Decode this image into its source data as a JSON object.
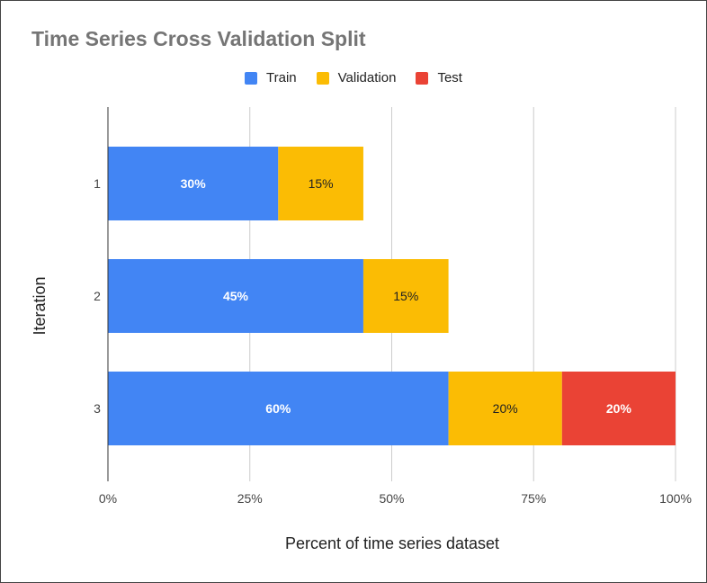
{
  "chart_data": {
    "type": "bar",
    "orientation": "horizontal",
    "stacked": true,
    "title": "Time Series Cross Validation Split",
    "xlabel": "Percent of time series dataset",
    "ylabel": "Iteration",
    "categories": [
      "1",
      "2",
      "3"
    ],
    "xlim": [
      0,
      100
    ],
    "xticks": [
      "0%",
      "25%",
      "50%",
      "75%",
      "100%"
    ],
    "grid": true,
    "legend_position": "top",
    "series": [
      {
        "name": "Train",
        "color": "#4285F4",
        "values": [
          30,
          45,
          60
        ],
        "labels": [
          "30%",
          "45%",
          "60%"
        ],
        "label_color": "#ffffff"
      },
      {
        "name": "Validation",
        "color": "#FBBC04",
        "values": [
          15,
          15,
          20
        ],
        "labels": [
          "15%",
          "15%",
          "20%"
        ],
        "label_color": "#222222"
      },
      {
        "name": "Test",
        "color": "#EA4335",
        "values": [
          0,
          0,
          20
        ],
        "labels": [
          "",
          "",
          "20%"
        ],
        "label_color": "#ffffff"
      }
    ]
  }
}
